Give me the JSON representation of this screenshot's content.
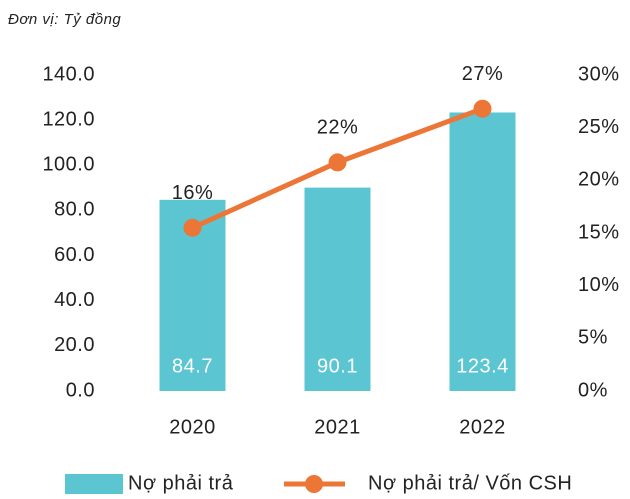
{
  "chart_data": {
    "type": "bar",
    "subtitle": "Đơn vị: Tỷ đồng",
    "categories": [
      "2020",
      "2021",
      "2022"
    ],
    "series": [
      {
        "name": "Nợ phải trả",
        "type": "bar",
        "color": "#5bc6d2",
        "values": [
          84.7,
          90.1,
          123.4
        ]
      },
      {
        "name": "Nợ phải trả/ Vốn CSH",
        "type": "line",
        "axis": "y2",
        "color": "#ec7636",
        "values": [
          15.5,
          21.7,
          26.8
        ],
        "value_labels": [
          "16%",
          "22%",
          "27%"
        ]
      }
    ],
    "ylim": [
      0,
      140
    ],
    "yticks": [
      {
        "value": 0,
        "label": "0.0"
      },
      {
        "value": 20,
        "label": "20.0"
      },
      {
        "value": 40,
        "label": "40.0"
      },
      {
        "value": 60,
        "label": "60.0"
      },
      {
        "value": 80,
        "label": "80.0"
      },
      {
        "value": 100,
        "label": "100.0"
      },
      {
        "value": 120,
        "label": "120.0"
      },
      {
        "value": 140,
        "label": "140.0"
      }
    ],
    "y2lim": [
      0,
      30
    ],
    "y2ticks": [
      {
        "value": 0,
        "label": "0%"
      },
      {
        "value": 5,
        "label": "5%"
      },
      {
        "value": 10,
        "label": "10%"
      },
      {
        "value": 15,
        "label": "15%"
      },
      {
        "value": 20,
        "label": "20%"
      },
      {
        "value": 25,
        "label": "25%"
      },
      {
        "value": 30,
        "label": "30%"
      }
    ],
    "legend": "bottom"
  }
}
